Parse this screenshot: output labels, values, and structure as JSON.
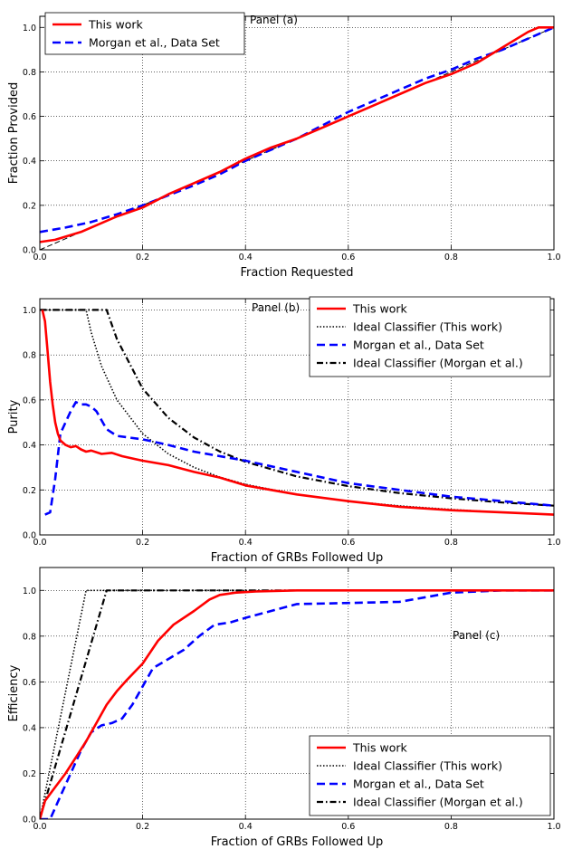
{
  "chart_data": [
    {
      "type": "line",
      "panel_label": "Panel (a)",
      "xlabel": "Fraction Requested",
      "ylabel": "Fraction Provided",
      "xlim": [
        0,
        1
      ],
      "ylim": [
        0,
        1.05
      ],
      "xticks": [
        "0.0",
        "0.2",
        "0.4",
        "0.6",
        "0.8",
        "1.0"
      ],
      "yticks": [
        "0.0",
        "0.2",
        "0.4",
        "0.6",
        "0.8",
        "1.0"
      ],
      "grid": true,
      "legend": {
        "placement": "top-left",
        "entries": [
          "This work",
          "Morgan et al., Data Set"
        ]
      },
      "series": [
        {
          "name": "This work",
          "color": "#ff0000",
          "style": "solid",
          "x": [
            0,
            0.03,
            0.08,
            0.15,
            0.2,
            0.25,
            0.3,
            0.35,
            0.4,
            0.45,
            0.5,
            0.55,
            0.6,
            0.65,
            0.7,
            0.75,
            0.8,
            0.85,
            0.9,
            0.95,
            0.97,
            1.0
          ],
          "y": [
            0.035,
            0.045,
            0.08,
            0.15,
            0.19,
            0.25,
            0.3,
            0.35,
            0.41,
            0.46,
            0.5,
            0.55,
            0.6,
            0.65,
            0.7,
            0.75,
            0.79,
            0.84,
            0.91,
            0.98,
            1.0,
            1.0
          ]
        },
        {
          "name": "Morgan et al., Data Set",
          "color": "#0000ff",
          "style": "dashed",
          "x": [
            0,
            0.05,
            0.1,
            0.15,
            0.2,
            0.25,
            0.3,
            0.35,
            0.4,
            0.45,
            0.5,
            0.55,
            0.6,
            0.65,
            0.7,
            0.75,
            0.8,
            0.85,
            0.9,
            0.95,
            1.0
          ],
          "y": [
            0.08,
            0.1,
            0.125,
            0.16,
            0.2,
            0.245,
            0.29,
            0.34,
            0.4,
            0.45,
            0.5,
            0.56,
            0.62,
            0.67,
            0.72,
            0.77,
            0.81,
            0.86,
            0.9,
            0.95,
            1.0
          ]
        },
        {
          "name": "",
          "color": "#000000",
          "style": "thin-dashed",
          "x": [
            0,
            1
          ],
          "y": [
            0,
            1
          ]
        }
      ]
    },
    {
      "type": "line",
      "panel_label": "Panel (b)",
      "xlabel": "Fraction of GRBs Followed Up",
      "ylabel": "Purity",
      "xlim": [
        0,
        1
      ],
      "ylim": [
        0,
        1.05
      ],
      "xticks": [
        "0.0",
        "0.2",
        "0.4",
        "0.6",
        "0.8",
        "1.0"
      ],
      "yticks": [
        "0.0",
        "0.2",
        "0.4",
        "0.6",
        "0.8",
        "1.0"
      ],
      "grid": true,
      "legend": {
        "placement": "top-right",
        "entries": [
          "This work",
          "Ideal Classifier (This work)",
          "Morgan et al., Data Set",
          "Ideal Classifier (Morgan et al.)"
        ]
      },
      "series": [
        {
          "name": "This work",
          "color": "#ff0000",
          "style": "solid",
          "x": [
            0.005,
            0.01,
            0.015,
            0.02,
            0.025,
            0.03,
            0.035,
            0.04,
            0.05,
            0.06,
            0.07,
            0.08,
            0.09,
            0.1,
            0.12,
            0.14,
            0.16,
            0.18,
            0.2,
            0.25,
            0.3,
            0.35,
            0.4,
            0.5,
            0.6,
            0.7,
            0.8,
            0.9,
            1.0
          ],
          "y": [
            1.0,
            0.95,
            0.82,
            0.68,
            0.58,
            0.5,
            0.45,
            0.42,
            0.4,
            0.39,
            0.395,
            0.38,
            0.37,
            0.375,
            0.36,
            0.365,
            0.35,
            0.34,
            0.33,
            0.31,
            0.28,
            0.255,
            0.22,
            0.18,
            0.15,
            0.125,
            0.11,
            0.1,
            0.09
          ]
        },
        {
          "name": "Ideal Classifier (This work)",
          "color": "#000000",
          "style": "dotted",
          "x": [
            0,
            0.09,
            0.1,
            0.12,
            0.15,
            0.2,
            0.25,
            0.3,
            0.35,
            0.4,
            0.5,
            0.6,
            0.7,
            0.8,
            0.9,
            1.0
          ],
          "y": [
            1.0,
            1.0,
            0.9,
            0.75,
            0.6,
            0.45,
            0.36,
            0.3,
            0.257,
            0.225,
            0.18,
            0.15,
            0.129,
            0.113,
            0.1,
            0.09
          ]
        },
        {
          "name": "Morgan et al., Data Set",
          "color": "#0000ff",
          "style": "dashed",
          "x": [
            0.01,
            0.02,
            0.03,
            0.04,
            0.05,
            0.06,
            0.07,
            0.08,
            0.09,
            0.1,
            0.11,
            0.13,
            0.15,
            0.2,
            0.25,
            0.3,
            0.4,
            0.5,
            0.6,
            0.7,
            0.8,
            0.9,
            1.0
          ],
          "y": [
            0.09,
            0.1,
            0.25,
            0.45,
            0.5,
            0.55,
            0.59,
            0.58,
            0.58,
            0.57,
            0.55,
            0.47,
            0.44,
            0.425,
            0.4,
            0.37,
            0.33,
            0.28,
            0.23,
            0.2,
            0.17,
            0.15,
            0.13
          ]
        },
        {
          "name": "Ideal Classifier (Morgan et al.)",
          "color": "#000000",
          "style": "dash-dot",
          "x": [
            0,
            0.13,
            0.15,
            0.2,
            0.25,
            0.3,
            0.35,
            0.4,
            0.5,
            0.6,
            0.7,
            0.8,
            0.9,
            1.0
          ],
          "y": [
            1.0,
            1.0,
            0.87,
            0.65,
            0.52,
            0.433,
            0.371,
            0.325,
            0.26,
            0.217,
            0.186,
            0.163,
            0.144,
            0.13
          ]
        }
      ]
    },
    {
      "type": "line",
      "panel_label": "Panel (c)",
      "xlabel": "Fraction of GRBs Followed Up",
      "ylabel": "Efficiency",
      "xlim": [
        0,
        1
      ],
      "ylim": [
        0,
        1.1
      ],
      "xticks": [
        "0.0",
        "0.2",
        "0.4",
        "0.6",
        "0.8",
        "1.0"
      ],
      "yticks": [
        "0.0",
        "0.2",
        "0.4",
        "0.6",
        "0.8",
        "1.0"
      ],
      "grid": true,
      "legend": {
        "placement": "bottom-right",
        "entries": [
          "This work",
          "Ideal Classifier (This work)",
          "Morgan et al., Data Set",
          "Ideal Classifier (Morgan et al.)"
        ]
      },
      "series": [
        {
          "name": "This work",
          "color": "#ff0000",
          "style": "solid",
          "x": [
            0,
            0.01,
            0.03,
            0.05,
            0.07,
            0.09,
            0.11,
            0.13,
            0.15,
            0.17,
            0.2,
            0.23,
            0.26,
            0.3,
            0.33,
            0.35,
            0.38,
            0.42,
            0.5,
            0.6,
            0.8,
            1.0
          ],
          "y": [
            0.0,
            0.08,
            0.14,
            0.2,
            0.27,
            0.34,
            0.42,
            0.5,
            0.56,
            0.61,
            0.68,
            0.78,
            0.85,
            0.91,
            0.96,
            0.98,
            0.99,
            0.995,
            1.0,
            1.0,
            1.0,
            1.0
          ]
        },
        {
          "name": "Ideal Classifier (This work)",
          "color": "#000000",
          "style": "dotted",
          "x": [
            0,
            0.09,
            1.0
          ],
          "y": [
            0,
            1.0,
            1.0
          ]
        },
        {
          "name": "Morgan et al., Data Set",
          "color": "#0000ff",
          "style": "dashed",
          "x": [
            0,
            0.02,
            0.04,
            0.06,
            0.08,
            0.1,
            0.12,
            0.14,
            0.16,
            0.18,
            0.2,
            0.22,
            0.25,
            0.28,
            0.31,
            0.34,
            0.37,
            0.4,
            0.45,
            0.5,
            0.6,
            0.7,
            0.8,
            0.9,
            1.0
          ],
          "y": [
            0.0,
            0.0,
            0.1,
            0.2,
            0.3,
            0.38,
            0.41,
            0.42,
            0.44,
            0.5,
            0.58,
            0.66,
            0.7,
            0.74,
            0.8,
            0.85,
            0.86,
            0.88,
            0.91,
            0.94,
            0.945,
            0.95,
            0.99,
            1.0,
            1.0
          ]
        },
        {
          "name": "Ideal Classifier (Morgan et al.)",
          "color": "#000000",
          "style": "dash-dot",
          "x": [
            0,
            0.13,
            1.0
          ],
          "y": [
            0,
            1.0,
            1.0
          ]
        }
      ]
    }
  ]
}
